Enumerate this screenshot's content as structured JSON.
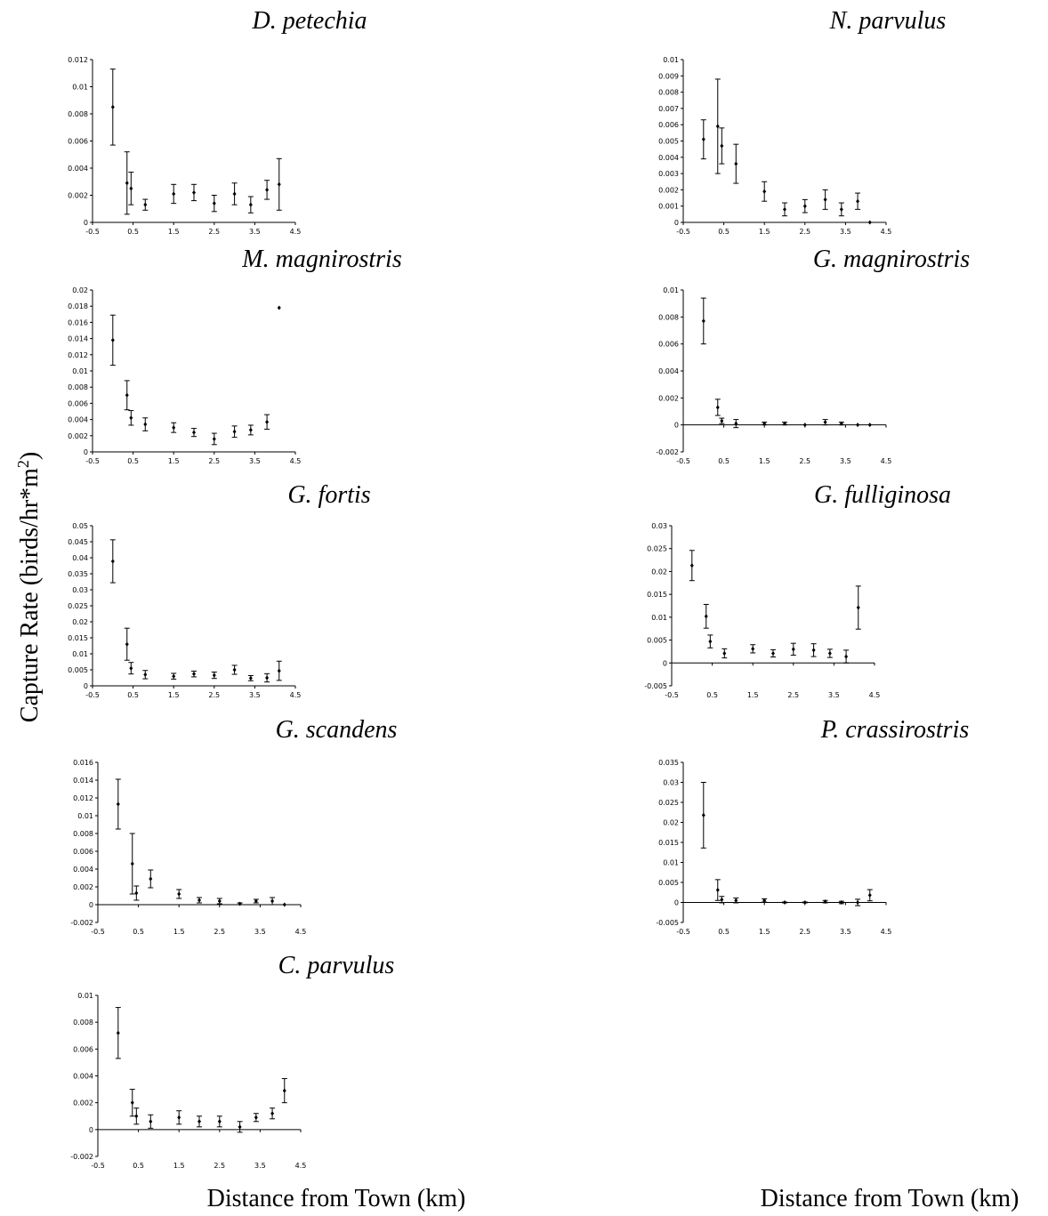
{
  "figure": {
    "ylabel_main": "Capture Rate (birds/hr*m",
    "ylabel_sup": "2",
    "ylabel_end": ")",
    "xlabel_left": "Distance from Town (km)",
    "xlabel_right": "Distance from Town (km)"
  },
  "chart_data": [
    {
      "type": "scatter",
      "title": "D. petechia",
      "xlabel": "",
      "ylabel": "",
      "xlim": [
        -0.5,
        4.5
      ],
      "ylim": [
        0,
        0.012
      ],
      "xticks": [
        "-0.5",
        "0.5",
        "1.5",
        "2.5",
        "3.5",
        "4.5"
      ],
      "yticks": [
        "0",
        "0.002",
        "0.004",
        "0.006",
        "0.008",
        "0.01",
        "0.012"
      ],
      "x": [
        0,
        0.35,
        0.45,
        0.8,
        1.5,
        2,
        2.5,
        3,
        3.4,
        3.8,
        4.1
      ],
      "y": [
        0.0085,
        0.0029,
        0.0025,
        0.0013,
        0.0021,
        0.0022,
        0.0014,
        0.0021,
        0.0013,
        0.0024,
        0.0028
      ],
      "err": [
        0.0028,
        0.0023,
        0.0012,
        0.0004,
        0.0007,
        0.0006,
        0.0006,
        0.0008,
        0.0006,
        0.0007,
        0.0019
      ]
    },
    {
      "type": "scatter",
      "title": "N. parvulus",
      "xlabel": "",
      "ylabel": "",
      "xlim": [
        -0.5,
        4.5
      ],
      "ylim": [
        0,
        0.01
      ],
      "xticks": [
        "-0.5",
        "0.5",
        "1.5",
        "2.5",
        "3.5",
        "4.5"
      ],
      "yticks": [
        "0",
        "0.001",
        "0.002",
        "0.003",
        "0.004",
        "0.005",
        "0.006",
        "0.007",
        "0.008",
        "0.009",
        "0.01"
      ],
      "x": [
        0,
        0.35,
        0.45,
        0.8,
        1.5,
        2,
        2.5,
        3,
        3.4,
        3.8,
        4.1
      ],
      "y": [
        0.0051,
        0.0059,
        0.0047,
        0.0036,
        0.0019,
        0.0008,
        0.001,
        0.0014,
        0.0008,
        0.0013,
        0
      ],
      "err": [
        0.0012,
        0.0029,
        0.0011,
        0.0012,
        0.0006,
        0.0004,
        0.0004,
        0.0006,
        0.0004,
        0.0005,
        0
      ]
    },
    {
      "type": "scatter",
      "title": "M. magnirostris",
      "xlabel": "",
      "ylabel": "",
      "xlim": [
        -0.5,
        4.5
      ],
      "ylim": [
        0,
        0.02
      ],
      "xticks": [
        "-0.5",
        "0.5",
        "1.5",
        "2.5",
        "3.5",
        "4.5"
      ],
      "yticks": [
        "0",
        "0.002",
        "0.004",
        "0.006",
        "0.008",
        "0.01",
        "0.012",
        "0.014",
        "0.016",
        "0.018",
        "0.02"
      ],
      "x": [
        0,
        0.35,
        0.45,
        0.8,
        1.5,
        2,
        2.5,
        3,
        3.4,
        3.8,
        4.1
      ],
      "y": [
        0.0138,
        0.007,
        0.0042,
        0.0034,
        0.003,
        0.0024,
        0.0016,
        0.0025,
        0.0027,
        0.0037,
        0.0178
      ],
      "err": [
        0.0031,
        0.0018,
        0.0009,
        0.0008,
        0.0006,
        0.0005,
        0.0007,
        0.0007,
        0.0006,
        0.0009,
        0
      ]
    },
    {
      "type": "scatter",
      "title": "G. magnirostris",
      "xlabel": "",
      "ylabel": "",
      "xlim": [
        -0.5,
        4.5
      ],
      "ylim": [
        -0.002,
        0.01
      ],
      "xticks": [
        "-0.5",
        "0.5",
        "1.5",
        "2.5",
        "3.5",
        "4.5"
      ],
      "yticks": [
        "-0.002",
        "0",
        "0.002",
        "0.004",
        "0.006",
        "0.008",
        "0.01"
      ],
      "x": [
        0,
        0.35,
        0.45,
        0.8,
        1.5,
        2,
        2.5,
        3,
        3.4,
        3.8,
        4.1
      ],
      "y": [
        0.0077,
        0.0013,
        0.0003,
        0.0001,
        0.0001,
        0.0001,
        0,
        0.0002,
        0.0001,
        0,
        0
      ],
      "err": [
        0.0017,
        0.0006,
        0.0002,
        0.0003,
        0.0001,
        0.0001,
        0,
        0.0002,
        0.0001,
        0,
        0
      ]
    },
    {
      "type": "scatter",
      "title": "G. fortis",
      "xlabel": "",
      "ylabel": "",
      "xlim": [
        -0.5,
        4.5
      ],
      "ylim": [
        0,
        0.05
      ],
      "xticks": [
        "-0.5",
        "0.5",
        "1.5",
        "2.5",
        "3.5",
        "4.5"
      ],
      "yticks": [
        "0",
        "0.005",
        "0.01",
        "0.015",
        "0.02",
        "0.025",
        "0.03",
        "0.035",
        "0.04",
        "0.045",
        "0.05"
      ],
      "x": [
        0,
        0.35,
        0.45,
        0.8,
        1.5,
        2,
        2.5,
        3,
        3.4,
        3.8,
        4.1
      ],
      "y": [
        0.0389,
        0.013,
        0.0055,
        0.0035,
        0.003,
        0.0037,
        0.0033,
        0.005,
        0.0024,
        0.0025,
        0.0047
      ],
      "err": [
        0.0067,
        0.005,
        0.0018,
        0.0013,
        0.0009,
        0.0009,
        0.001,
        0.0014,
        0.0008,
        0.0013,
        0.003
      ]
    },
    {
      "type": "scatter",
      "title": "G. fulliginosa",
      "xlabel": "",
      "ylabel": "",
      "xlim": [
        -0.5,
        4.5
      ],
      "ylim": [
        -0.005,
        0.03
      ],
      "xticks": [
        "-0.5",
        "0.5",
        "1.5",
        "2.5",
        "3.5",
        "4.5"
      ],
      "yticks": [
        "-0.005",
        "0",
        "0.005",
        "0.01",
        "0.015",
        "0.02",
        "0.025",
        "0.03"
      ],
      "x": [
        0,
        0.35,
        0.45,
        0.8,
        1.5,
        2,
        2.5,
        3,
        3.4,
        3.8,
        4.1
      ],
      "y": [
        0.0213,
        0.0102,
        0.0047,
        0.0021,
        0.0031,
        0.0021,
        0.003,
        0.0028,
        0.0021,
        0.0014,
        0.0121
      ],
      "err": [
        0.0033,
        0.0026,
        0.0014,
        0.001,
        0.0009,
        0.0008,
        0.0013,
        0.0014,
        0.0009,
        0.0014,
        0.0047
      ]
    },
    {
      "type": "scatter",
      "title": "G. scandens",
      "xlabel": "",
      "ylabel": "",
      "xlim": [
        -0.5,
        4.5
      ],
      "ylim": [
        -0.002,
        0.016
      ],
      "xticks": [
        "-0.5",
        "0.5",
        "1.5",
        "2.5",
        "3.5",
        "4.5"
      ],
      "yticks": [
        "-0.002",
        "0",
        "0.002",
        "0.004",
        "0.006",
        "0.008",
        "0.01",
        "0.012",
        "0.014",
        "0.016"
      ],
      "x": [
        0,
        0.35,
        0.45,
        0.8,
        1.5,
        2,
        2.5,
        3,
        3.4,
        3.8,
        4.1
      ],
      "y": [
        0.0113,
        0.0046,
        0.0013,
        0.0029,
        0.0012,
        0.0005,
        0.0004,
        0.0001,
        0.0004,
        0.0004,
        0
      ],
      "err": [
        0.0028,
        0.0034,
        0.0008,
        0.001,
        0.0005,
        0.0003,
        0.0003,
        0.0001,
        0.0002,
        0.0004,
        0
      ]
    },
    {
      "type": "scatter",
      "title": "P. crassirostris",
      "xlabel": "",
      "ylabel": "",
      "xlim": [
        -0.5,
        4.5
      ],
      "ylim": [
        -0.005,
        0.035
      ],
      "xticks": [
        "-0.5",
        "0.5",
        "1.5",
        "2.5",
        "3.5",
        "4.5"
      ],
      "yticks": [
        "-0.005",
        "0",
        "0.005",
        "0.01",
        "0.015",
        "0.02",
        "0.025",
        "0.03",
        "0.035"
      ],
      "x": [
        0,
        0.35,
        0.45,
        0.8,
        1.5,
        2,
        2.5,
        3,
        3.4,
        3.8,
        4.1
      ],
      "y": [
        0.0218,
        0.0031,
        0.0007,
        0.0005,
        0.0005,
        0,
        0,
        0.0002,
        0,
        0,
        0.0018
      ],
      "err": [
        0.0082,
        0.0026,
        0.0008,
        0.0006,
        0.0004,
        0.0001,
        0.0001,
        0.0003,
        0.0003,
        0.0008,
        0.0014
      ]
    },
    {
      "type": "scatter",
      "title": "C. parvulus",
      "xlabel": "",
      "ylabel": "",
      "xlim": [
        -0.5,
        4.5
      ],
      "ylim": [
        -0.002,
        0.01
      ],
      "xticks": [
        "-0.5",
        "0.5",
        "1.5",
        "2.5",
        "3.5",
        "4.5"
      ],
      "yticks": [
        "-0.002",
        "0",
        "0.002",
        "0.004",
        "0.006",
        "0.008",
        "0.01"
      ],
      "x": [
        0,
        0.35,
        0.45,
        0.8,
        1.5,
        2,
        2.5,
        3,
        3.4,
        3.8,
        4.1
      ],
      "y": [
        0.0072,
        0.002,
        0.001,
        0.0006,
        0.0009,
        0.0006,
        0.0006,
        0.0002,
        0.0009,
        0.0012,
        0.0029
      ],
      "err": [
        0.0019,
        0.001,
        0.0006,
        0.0005,
        0.0005,
        0.0004,
        0.0004,
        0.0004,
        0.0003,
        0.0004,
        0.0009
      ]
    }
  ]
}
